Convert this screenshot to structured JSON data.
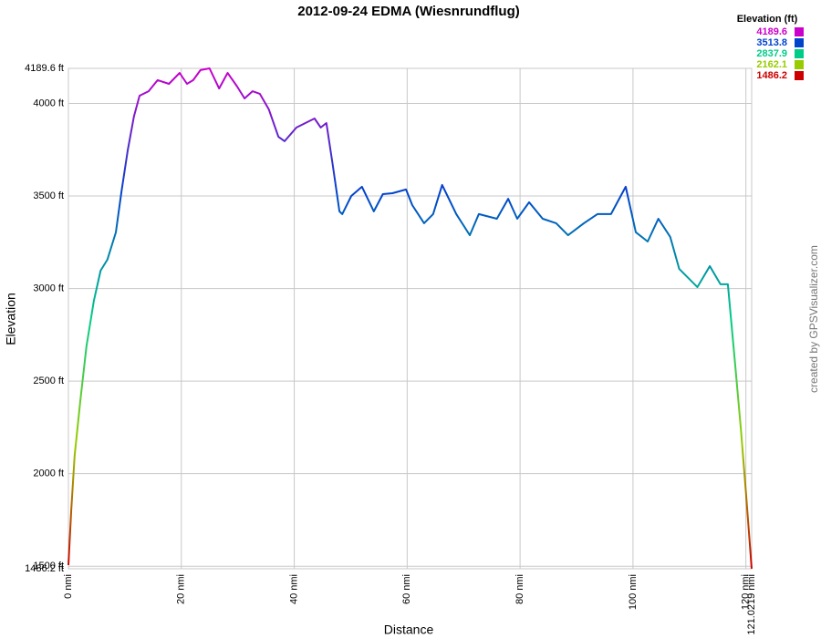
{
  "chart_data": {
    "type": "line",
    "title": "2012-09-24 EDMA (Wiesnrundflug)",
    "x_label": "Distance",
    "y_label": "Elevation",
    "credit": "created by GPSVisualizer.com",
    "x": [
      0,
      0.5,
      1.1,
      2.1,
      3.2,
      4.5,
      5.7,
      6.9,
      8.4,
      9.4,
      10.5,
      11.6,
      12.6,
      14.2,
      15.8,
      17.8,
      19.7,
      21.0,
      22.1,
      23.4,
      25.0,
      26.7,
      28.2,
      29.9,
      31.2,
      32.6,
      33.9,
      35.5,
      37.2,
      38.3,
      40.4,
      43.6,
      44.7,
      45.7,
      46.8,
      48.0,
      48.5,
      50.1,
      52.0,
      54.1,
      55.7,
      57.4,
      59.8,
      60.9,
      63.0,
      64.6,
      66.2,
      68.7,
      71.1,
      72.7,
      75.9,
      77.9,
      79.5,
      81.6,
      84.0,
      86.4,
      88.5,
      91.3,
      93.7,
      96.1,
      98.7,
      100.5,
      102.6,
      104.5,
      106.6,
      108.2,
      111.4,
      113.6,
      115.5,
      116.8,
      118.1,
      119.1,
      120.0,
      121.0219
    ],
    "values": [
      1506,
      1802,
      2097,
      2392,
      2688,
      2934,
      3097,
      3156,
      3303,
      3525,
      3746,
      3929,
      4042,
      4066,
      4126,
      4106,
      4165,
      4106,
      4126,
      4180,
      4189.6,
      4081,
      4165,
      4091,
      4027,
      4066,
      4052,
      3968,
      3820,
      3796,
      3870,
      3919,
      3870,
      3894,
      3673,
      3417,
      3402,
      3500,
      3550,
      3417,
      3510,
      3515,
      3535,
      3451,
      3353,
      3402,
      3560,
      3402,
      3288,
      3402,
      3377,
      3485,
      3377,
      3466,
      3377,
      3353,
      3288,
      3353,
      3402,
      3402,
      3550,
      3304,
      3254,
      3377,
      3279,
      3106,
      3008,
      3121,
      3023,
      3023,
      2589,
      2245,
      1900,
      1486.2
    ],
    "xlim": [
      0,
      121.0219
    ],
    "ylim": [
      1486.2,
      4189.6
    ],
    "xticks": [
      {
        "value": 0,
        "label": "0 nmi"
      },
      {
        "value": 20,
        "label": "20 nmi"
      },
      {
        "value": 40,
        "label": "40 nmi"
      },
      {
        "value": 60,
        "label": "60 nmi"
      },
      {
        "value": 80,
        "label": "80 nmi"
      },
      {
        "value": 100,
        "label": "100 nmi"
      },
      {
        "value": 120,
        "label": "120 nmi"
      },
      {
        "value": 121.0219,
        "label": "121.0219 nmi"
      }
    ],
    "yticks": [
      {
        "value": 1486.2,
        "label": "1486.2 ft"
      },
      {
        "value": 1500,
        "label": "1500 ft"
      },
      {
        "value": 2000,
        "label": "2000 ft"
      },
      {
        "value": 2500,
        "label": "2500 ft"
      },
      {
        "value": 3000,
        "label": "3000 ft"
      },
      {
        "value": 3500,
        "label": "3500 ft"
      },
      {
        "value": 4000,
        "label": "4000 ft"
      },
      {
        "value": 4189.6,
        "label": "4189.6 ft"
      }
    ],
    "grid": true,
    "legend": {
      "title": "Elevation (ft)",
      "items": [
        {
          "value": 4189.6,
          "color": "#cc00cc"
        },
        {
          "value": 3513.8,
          "color": "#0044cc"
        },
        {
          "value": 2837.9,
          "color": "#00cc88"
        },
        {
          "value": 2162.1,
          "color": "#99cc00"
        },
        {
          "value": 1486.2,
          "color": "#cc0000"
        }
      ]
    }
  }
}
